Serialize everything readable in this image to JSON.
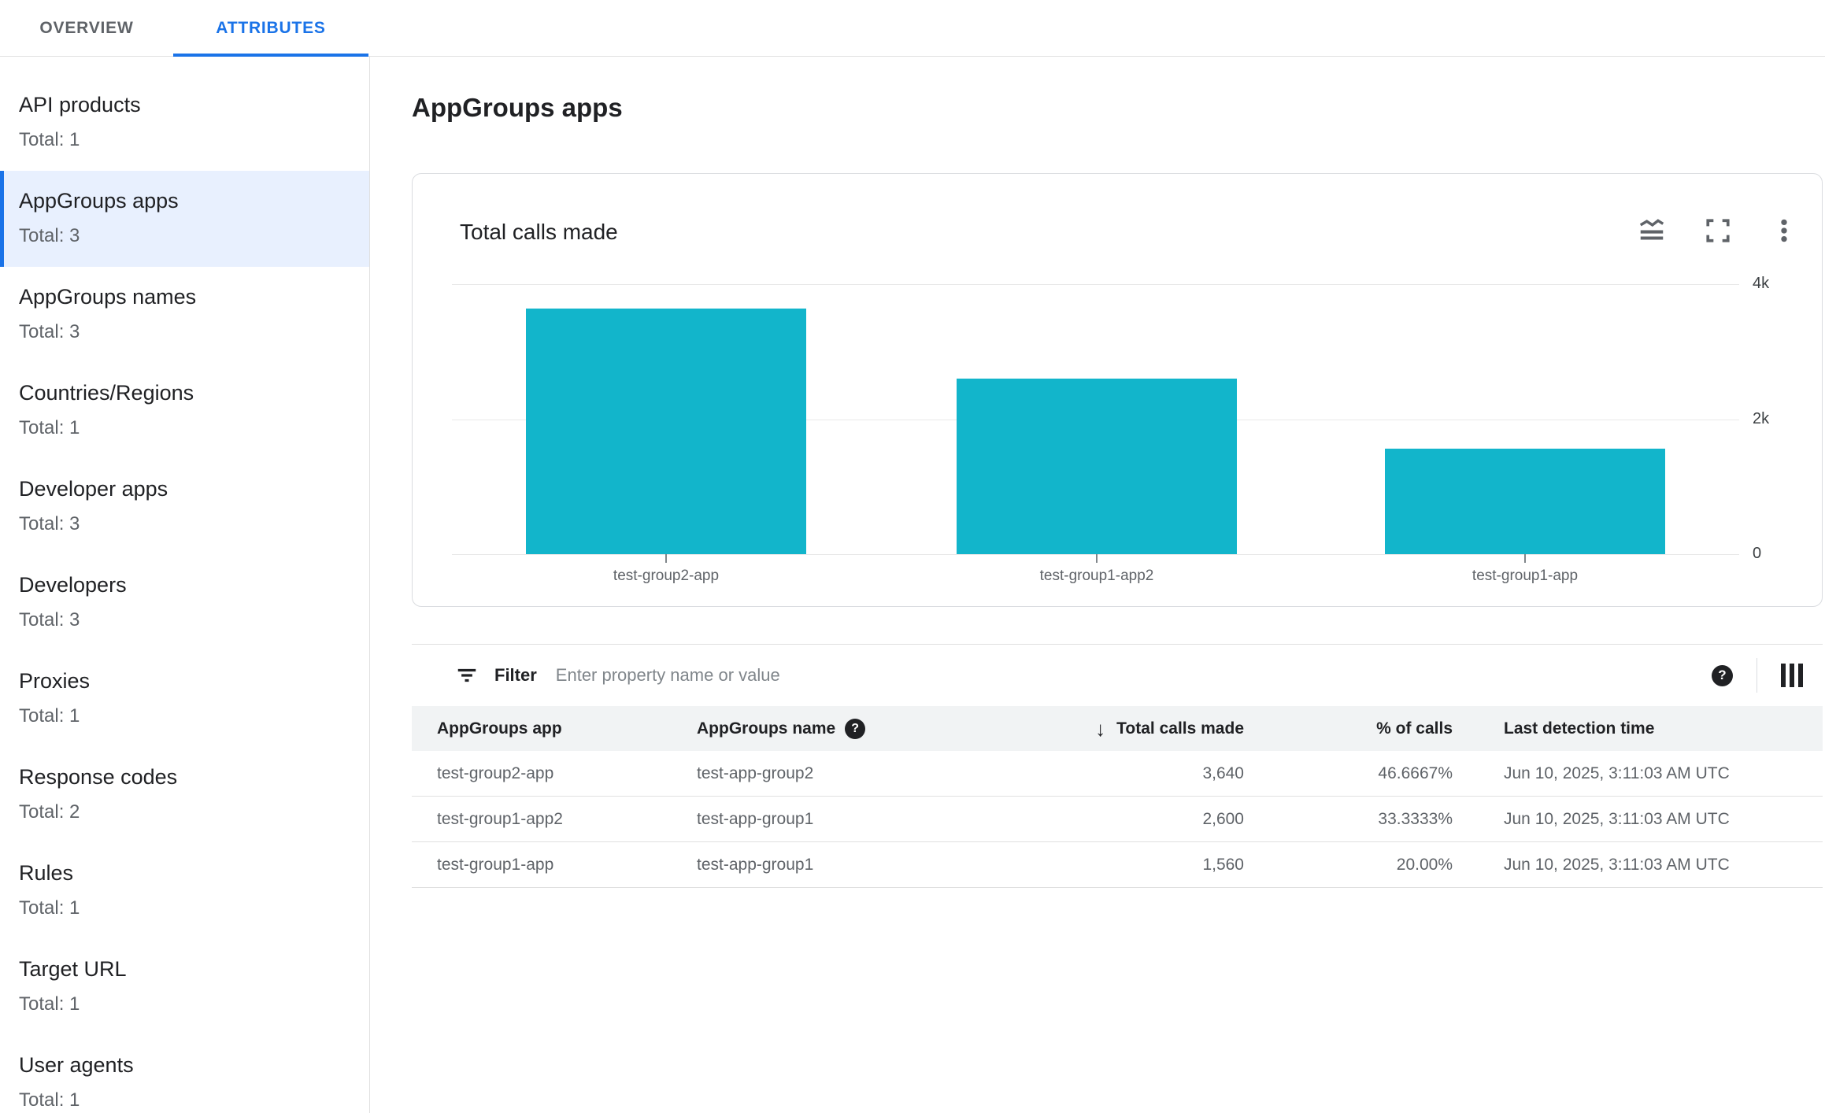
{
  "tabs": [
    {
      "label": "OVERVIEW",
      "active": false
    },
    {
      "label": "ATTRIBUTES",
      "active": true
    }
  ],
  "sidebar": {
    "selected": "AppGroups apps",
    "selected_index": 1,
    "items": [
      {
        "label": "API products",
        "total": "Total: 1"
      },
      {
        "label": "AppGroups apps",
        "total": "Total: 3"
      },
      {
        "label": "AppGroups names",
        "total": "Total: 3"
      },
      {
        "label": "Countries/Regions",
        "total": "Total: 1"
      },
      {
        "label": "Developer apps",
        "total": "Total: 3"
      },
      {
        "label": "Developers",
        "total": "Total: 3"
      },
      {
        "label": "Proxies",
        "total": "Total: 1"
      },
      {
        "label": "Response codes",
        "total": "Total: 2"
      },
      {
        "label": "Rules",
        "total": "Total: 1"
      },
      {
        "label": "Target URL",
        "total": "Total: 1"
      },
      {
        "label": "User agents",
        "total": "Total: 1"
      }
    ]
  },
  "main": {
    "title": "AppGroups apps",
    "chart_card": {
      "title": "Total calls made",
      "icons": [
        "chart-type-icon",
        "fullscreen-icon",
        "more-options-icon"
      ]
    },
    "filter": {
      "label": "Filter",
      "placeholder": "Enter property name or value"
    },
    "table": {
      "columns": [
        "AppGroups app",
        "AppGroups name",
        "Total calls made",
        "% of calls",
        "Last detection time"
      ],
      "sorted_by": "Total calls made",
      "sort_direction": "descending",
      "sort_arrow": "↓",
      "rows": [
        {
          "app": "test-group2-app",
          "name": "test-app-group2",
          "calls": "3,640",
          "pct": "46.6667%",
          "time": "Jun 10, 2025, 3:11:03 AM UTC"
        },
        {
          "app": "test-group1-app2",
          "name": "test-app-group1",
          "calls": "2,600",
          "pct": "33.3333%",
          "time": "Jun 10, 2025, 3:11:03 AM UTC"
        },
        {
          "app": "test-group1-app",
          "name": "test-app-group1",
          "calls": "1,560",
          "pct": "20.00%",
          "time": "Jun 10, 2025, 3:11:03 AM UTC"
        }
      ]
    }
  },
  "chart_data": {
    "type": "bar",
    "title": "Total calls made",
    "categories": [
      "test-group2-app",
      "test-group1-app2",
      "test-group1-app"
    ],
    "values": [
      3640,
      2600,
      1560
    ],
    "xlabel": "",
    "ylabel": "",
    "ylim": [
      0,
      4000
    ],
    "yticks": [
      "4k",
      "2k",
      "0"
    ],
    "ytick_values": [
      4000,
      2000,
      0
    ],
    "axis_side": "right",
    "grid": true,
    "legend": false,
    "bar_color": "#12b5cb"
  },
  "colors": {
    "accent_blue": "#1a73e8",
    "selected_bg": "#e8f0fe",
    "bar_teal": "#12b5cb",
    "border": "#e0e0e0",
    "text_dark": "#202124",
    "text_gray": "#5f6368"
  }
}
